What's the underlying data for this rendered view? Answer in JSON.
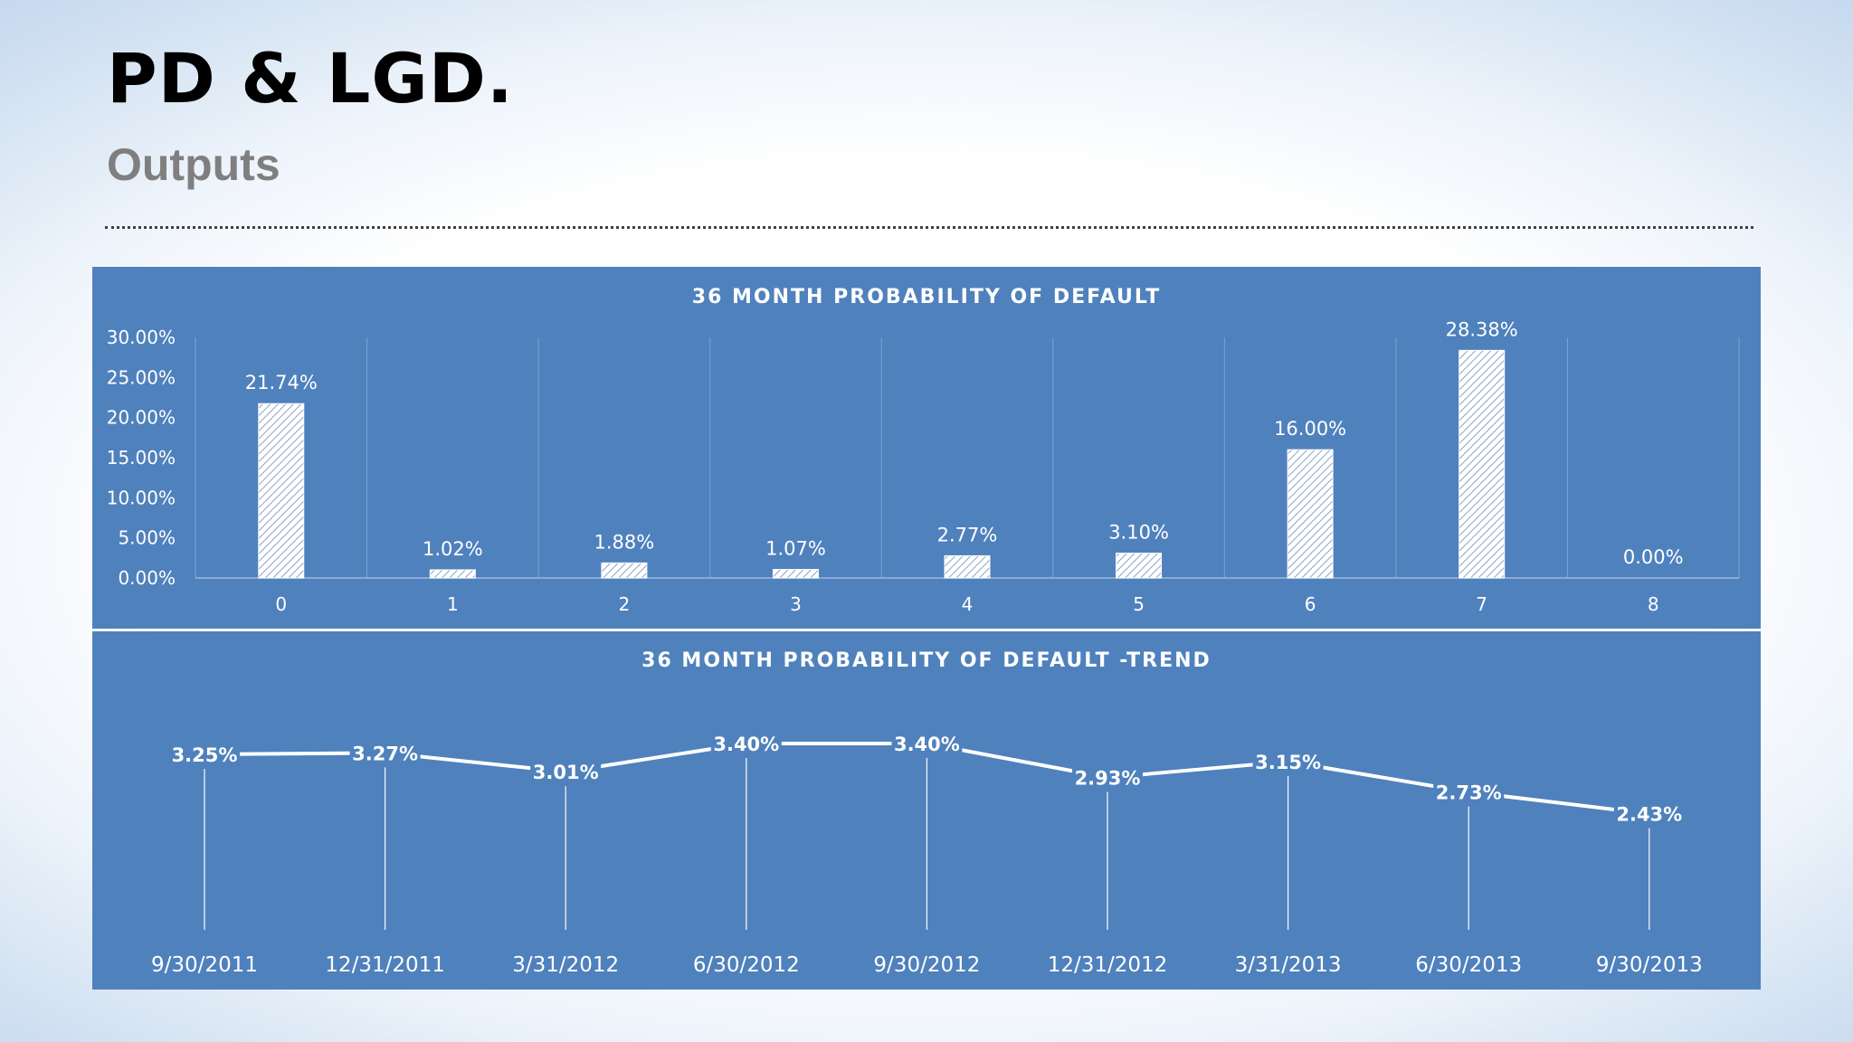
{
  "slide": {
    "title": "PD & LGD.",
    "subtitle": "Outputs",
    "panel_color": "#4f81bd"
  },
  "chart_data": [
    {
      "type": "bar",
      "title": "36 MONTH PROBABILITY OF DEFAULT",
      "categories": [
        "0",
        "1",
        "2",
        "3",
        "4",
        "5",
        "6",
        "7",
        "8"
      ],
      "values": [
        21.74,
        1.02,
        1.88,
        1.07,
        2.77,
        3.1,
        16.0,
        28.38,
        0.0
      ],
      "labels": [
        "21.74%",
        "1.02%",
        "1.88%",
        "1.07%",
        "2.77%",
        "3.10%",
        "16.00%",
        "28.38%",
        "0.00%"
      ],
      "yticks": [
        "0.00%",
        "5.00%",
        "10.00%",
        "15.00%",
        "20.00%",
        "25.00%",
        "30.00%"
      ],
      "ylim": [
        0,
        30
      ],
      "xlabel": "",
      "ylabel": "",
      "grid": "vertical",
      "bar_fill": "white hatched"
    },
    {
      "type": "line",
      "title": "36 MONTH PROBABILITY OF DEFAULT -TREND",
      "categories": [
        "9/30/2011",
        "12/31/2011",
        "3/31/2012",
        "6/30/2012",
        "9/30/2012",
        "12/31/2012",
        "3/31/2013",
        "6/30/2013",
        "9/30/2013"
      ],
      "values": [
        3.25,
        3.27,
        3.01,
        3.4,
        3.4,
        2.93,
        3.15,
        2.73,
        2.43
      ],
      "labels": [
        "3.25%",
        "3.27%",
        "3.01%",
        "3.40%",
        "3.40%",
        "2.93%",
        "3.15%",
        "2.73%",
        "2.43%"
      ],
      "ylim": [
        0,
        4
      ],
      "drop_lines": true,
      "line_color": "#ffffff"
    }
  ]
}
